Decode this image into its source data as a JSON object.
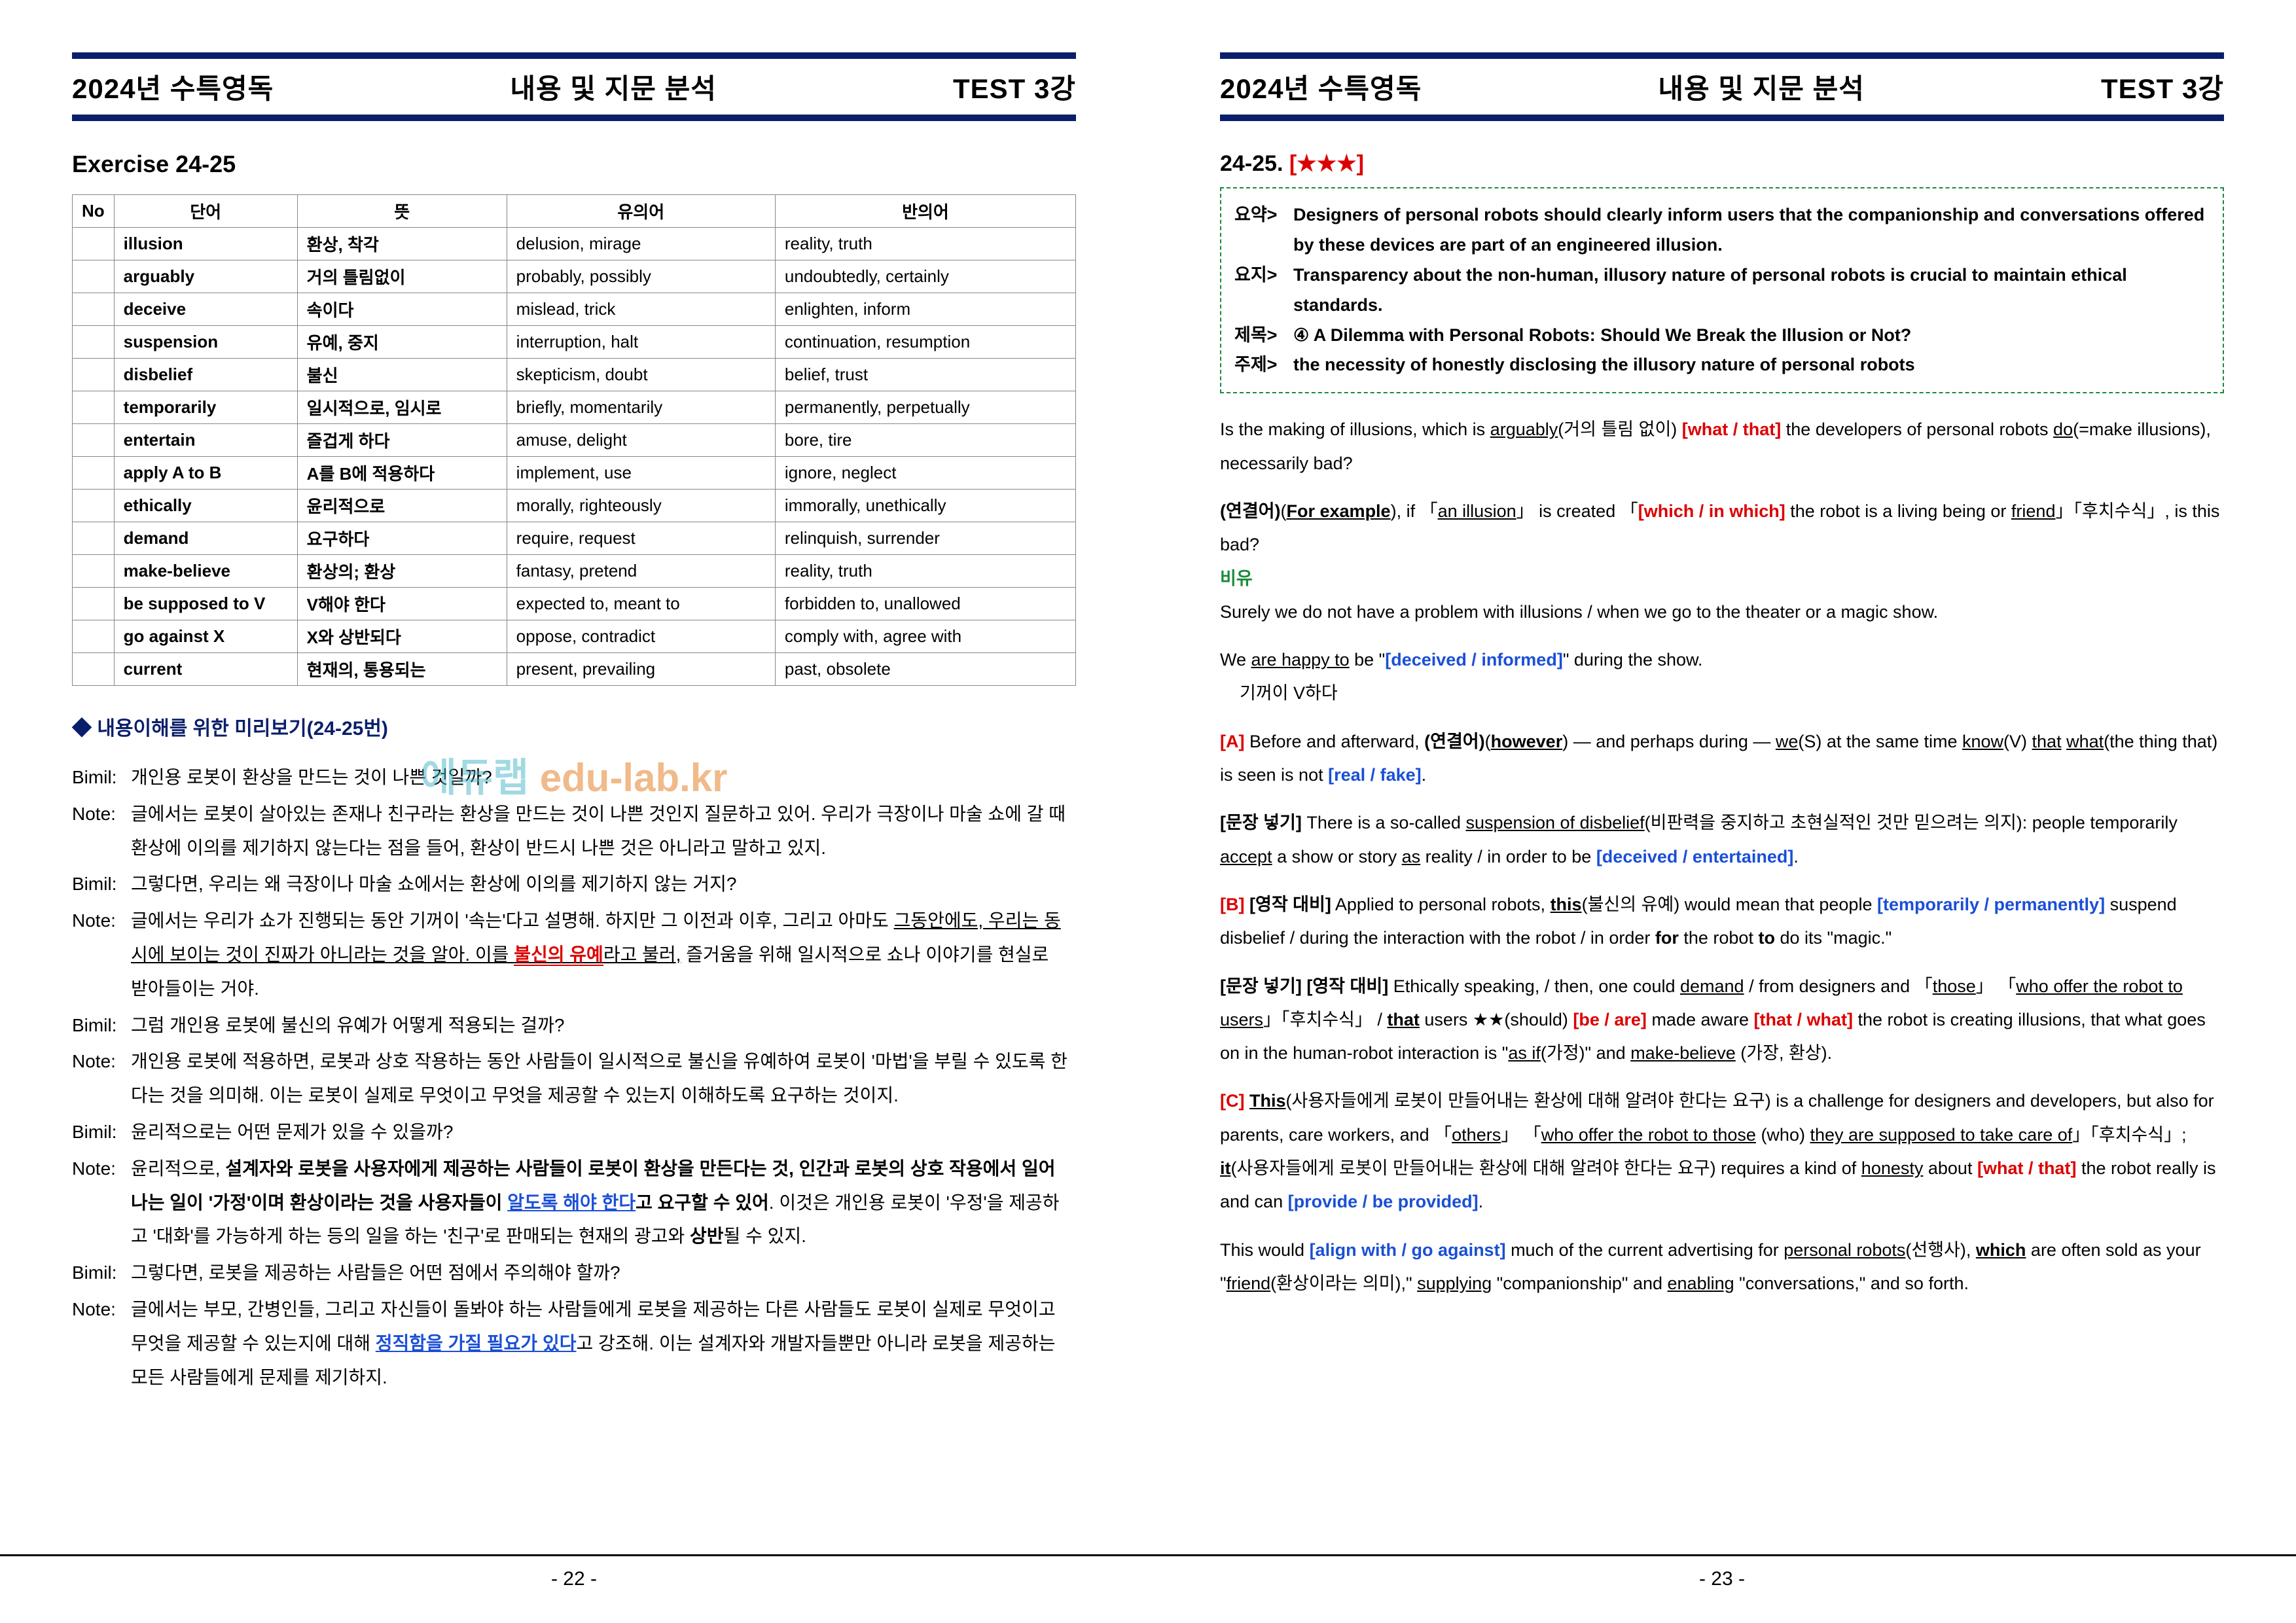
{
  "header": {
    "left": "2024년 수특영독",
    "center": "내용 및 지문 분석",
    "right": "TEST 3강"
  },
  "left_page": {
    "exercise_title": "Exercise  24-25",
    "vocab_headers": [
      "No",
      "단어",
      "뜻",
      "유의어",
      "반의어"
    ],
    "vocab_rows": [
      [
        "",
        "illusion",
        "환상, 착각",
        "delusion, mirage",
        "reality, truth"
      ],
      [
        "",
        "arguably",
        "거의 틀림없이",
        "probably, possibly",
        "undoubtedly, certainly"
      ],
      [
        "",
        "deceive",
        "속이다",
        "mislead, trick",
        "enlighten, inform"
      ],
      [
        "",
        "suspension",
        "유예, 중지",
        "interruption, halt",
        "continuation, resumption"
      ],
      [
        "",
        "disbelief",
        "불신",
        "skepticism, doubt",
        "belief, trust"
      ],
      [
        "",
        "temporarily",
        "일시적으로, 임시로",
        "briefly, momentarily",
        "permanently, perpetually"
      ],
      [
        "",
        "entertain",
        "즐겁게 하다",
        "amuse, delight",
        "bore, tire"
      ],
      [
        "",
        "apply A to B",
        "A를 B에 적용하다",
        "implement, use",
        "ignore, neglect"
      ],
      [
        "",
        "ethically",
        "윤리적으로",
        "morally, righteously",
        "immorally, unethically"
      ],
      [
        "",
        "demand",
        "요구하다",
        "require, request",
        "relinquish, surrender"
      ],
      [
        "",
        "make-believe",
        "환상의; 환상",
        "fantasy, pretend",
        "reality, truth"
      ],
      [
        "",
        "be supposed to V",
        "V해야 한다",
        "expected to, meant to",
        "forbidden to, unallowed"
      ],
      [
        "",
        "go against X",
        "X와 상반되다",
        "oppose, contradict",
        "comply with, agree with"
      ],
      [
        "",
        "current",
        "현재의, 통용되는",
        "present, prevailing",
        "past, obsolete"
      ]
    ],
    "preview_title": "◆ 내용이해를 위한 미리보기(24-25번)",
    "notes": [
      {
        "l": "Bimil:",
        "t": "개인용 로봇이 환상을 만드는 것이 나쁜 것일까?"
      },
      {
        "l": "Note:",
        "t": "글에서는 로봇이 살아있는 존재나 친구라는 환상을 만드는 것이 나쁜 것인지 질문하고 있어. 우리가 극장이나 마술 쇼에 갈 때 환상에 이의를 제기하지 않는다는 점을 들어, 환상이 반드시 나쁜 것은 아니라고 말하고 있지."
      },
      {
        "l": "Bimil:",
        "t": "그렇다면, 우리는 왜 극장이나 마술 쇼에서는 환상에 이의를 제기하지 않는 거지?"
      },
      {
        "l": "Note:",
        "t": "글에서는 우리가 쇼가 진행되는 동안 기꺼이 '속는'다고 설명해. 하지만 그 이전과 이후, 그리고 아마도 <span class=\"ul\">그동안에도, 우리는 동시에 보이는 것이 진짜가 아니라는 것을 알아. 이를 <span class=\"red\">불신의 유예</span>라고 불러,</span> 즐거움을 위해 일시적으로 쇼나 이야기를 현실로 받아들이는 거야."
      },
      {
        "l": "Bimil:",
        "t": "그럼 개인용 로봇에 불신의 유예가 어떻게 적용되는 걸까?"
      },
      {
        "l": "Note:",
        "t": "개인용 로봇에 적용하면, 로봇과 상호 작용하는 동안 사람들이 일시적으로 불신을 유예하여 로봇이 '마법'을 부릴 수 있도록 한다는 것을 의미해. 이는 로봇이 실제로 무엇이고 무엇을 제공할 수 있는지 이해하도록 요구하는 것이지."
      },
      {
        "l": "Bimil:",
        "t": "윤리적으로는 어떤 문제가 있을 수 있을까?"
      },
      {
        "l": "Note:",
        "t": "윤리적으로, <span class=\"bold\">설계자와 로봇을 사용자에게 제공하는 사람들이 로봇이 환상을 만든다는 것, 인간과 로봇의 상호 작용에서 일어나는 일이 '가정'이며 환상이라는 것을 사용자들이 <span class=\"blue-u\">알도록 해야 한다</span>고 요구할 수 있어</span>. 이것은 개인용 로봇이 '우정'을 제공하고 '대화'를 가능하게 하는 등의 일을 하는 '친구'로 판매되는 현재의 광고와 <span class=\"bold\">상반</span>될 수 있지."
      },
      {
        "l": "Bimil:",
        "t": "그렇다면, 로봇을 제공하는 사람들은 어떤 점에서 주의해야 할까?"
      },
      {
        "l": "Note:",
        "t": "글에서는 부모, 간병인들, 그리고 자신들이 돌봐야 하는 사람들에게 로봇을 제공하는 다른 사람들도 로봇이 실제로 무엇이고 무엇을 제공할 수 있는지에 대해 <span class=\"blue-u\">정직함을 가질 필요가 있다</span>고 강조해. 이는 설계자와 개발자들뿐만 아니라 로봇을 제공하는 모든 사람들에게 문제를 제기하지."
      }
    ],
    "page_num": "- 22 -"
  },
  "right_page": {
    "q_title_num": "24-25.",
    "q_title_stars": "[★★★]",
    "summary": [
      {
        "l": "요약>",
        "t": "Designers of personal robots should clearly inform users that the companionship and conversations offered by these devices are part of an engineered illusion."
      },
      {
        "l": "요지>",
        "t": "Transparency about the non-human, illusory nature of personal robots is crucial to maintain ethical standards."
      },
      {
        "l": "제목>",
        "t": "④ A Dilemma with Personal Robots: Should We Break the Illusion or Not?"
      },
      {
        "l": "주제>",
        "t": "the necessity of honestly disclosing the illusory nature of personal robots"
      }
    ],
    "paragraphs": [
      "Is the making of illusions, which is <span class=\"ul\">arguably</span>(거의 틀림 없이) <span class=\"br-red\">[what / that]</span> the developers of personal robots <span class=\"ul\">do</span>(=make illusions), necessarily bad?",
      "<span class=\"bold\">(연결어)</span>(<span class=\"ul bold\">For example</span>), if 「<span class=\"ul\">an illusion</span>」 is created 「<span class=\"br-red\">[which / in which]</span> the robot is a living being or <span class=\"ul\">friend</span>」「후치수식」, is this bad?<br><span class=\"green\">비유</span><br>Surely we do not have a problem with illusions / when we go to the theater or a magic show.",
      "We <span class=\"ul\">are happy to</span> be \"<span class=\"br-blue\">[deceived / informed]</span>\" during the show.<br>&nbsp;&nbsp;&nbsp;&nbsp;기꺼이 V하다",
      "<span class=\"br-red lbl-box\">[A]</span> Before and afterward, <span class=\"bold\">(연결어)</span>(<span class=\"ul bold\">however</span>) — and perhaps during — <span class=\"ul\">we</span>(S) at the same time <span class=\"ul\">know</span>(V) <span class=\"ul\">that</span> <span class=\"ul\">what</span>(the thing that) is seen is not <span class=\"br-blue\">[real / fake]</span>.",
      "<span class=\"bold\">[문장 넣기]</span> There is a so-called <span class=\"ul\">suspension of disbelief</span>(비판력을 중지하고 초현실적인 것만 믿으려는 의지): people temporarily <span class=\"ul\">accept</span> a show or story <span class=\"ul\">as</span> reality / in order to be <span class=\"br-blue\">[deceived / entertained]</span>.",
      "<span class=\"br-red lbl-box\">[B]</span> <span class=\"bold\">[영작 대비]</span> Applied to personal robots, <span class=\"ul bold\">this</span>(불신의 유예) would mean that people <span class=\"br-blue\">[temporarily / permanently]</span> suspend disbelief / during the interaction with the robot / in order <span class=\"bold\">for</span> the robot <span class=\"bold\">to</span> do its \"magic.\"",
      "<span class=\"bold\">[문장 넣기] [영작 대비]</span> Ethically speaking, / then, one could <span class=\"ul\">demand</span> / from designers and 「<span class=\"ul\">those</span>」 「<span class=\"ul\">who offer the robot to users</span>」「후치수식」 / <span class=\"ul bold\">that</span> users ★★(should) <span class=\"br-red\">[be / are]</span> made aware <span class=\"br-red\">[that / what]</span> the robot is creating illusions, that what goes on in the human-robot interaction is \"<span class=\"ul\">as if</span>(가정)\" and <span class=\"ul\">make-believe</span> (가장, 환상).",
      "<span class=\"br-red lbl-box\">[C]</span> <span class=\"ul bold\">This</span>(사용자들에게 로봇이 만들어내는 환상에 대해 알려야 한다는 요구) is a challenge for designers and developers, but also for parents, care workers, and 「<span class=\"ul\">others</span>」 「<span class=\"ul\">who offer the robot to those</span> (who) <span class=\"ul\">they are supposed to take care of</span>」「후치수식」; <span class=\"ul bold\">it</span>(사용자들에게 로봇이 만들어내는 환상에 대해 알려야 한다는 요구) requires a kind of <span class=\"ul\">honesty</span> about <span class=\"br-red\">[what / that]</span> the robot really is and can <span class=\"br-blue\">[provide / be provided]</span>.",
      "This would <span class=\"br-blue\">[align with / go against]</span> much of the current advertising for <span class=\"ul\">personal robots</span>(선행사), <span class=\"ul bold\">which</span> are often sold as your \"<span class=\"ul\">friend</span>(환상이라는 의미),\" <span class=\"ul\">supplying</span> \"companionship\" and <span class=\"ul\">enabling</span> \"conversations,\" and so forth."
    ],
    "page_num": "- 23 -"
  },
  "watermark": {
    "a": "에듀랩 ",
    "b": "edu-lab.kr"
  }
}
